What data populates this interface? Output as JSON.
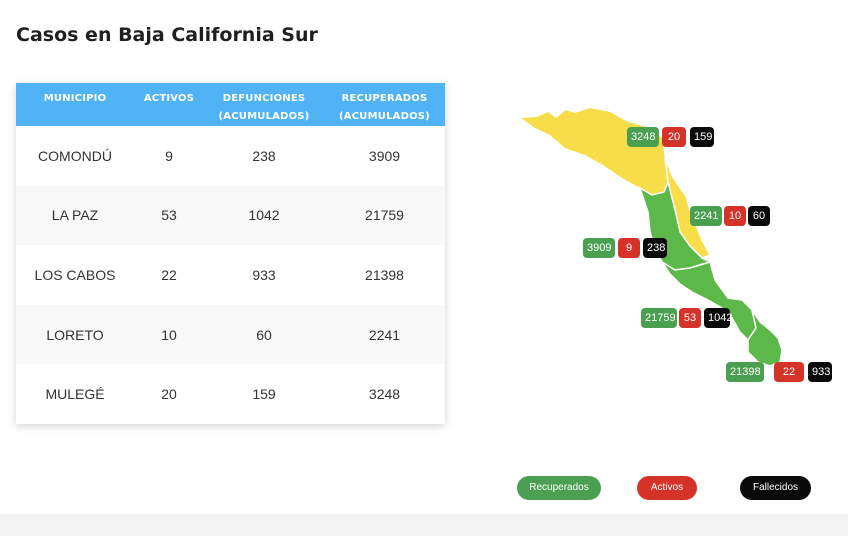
{
  "page": {
    "title": "Casos en Baja California Sur"
  },
  "table": {
    "headers": {
      "municipio": "MUNICIPIO",
      "activos": "ACTIVOS",
      "defunciones_1": "DEFUNCIONES",
      "defunciones_2": "(ACUMULADOS)",
      "recuperados_1": "RECUPERADOS",
      "recuperados_2": "(ACUMULADOS)"
    },
    "rows": [
      {
        "municipio": "COMONDÚ",
        "activos": "9",
        "defunciones": "238",
        "recuperados": "3909"
      },
      {
        "municipio": "LA PAZ",
        "activos": "53",
        "defunciones": "1042",
        "recuperados": "21759"
      },
      {
        "municipio": "LOS CABOS",
        "activos": "22",
        "defunciones": "933",
        "recuperados": "21398"
      },
      {
        "municipio": "LORETO",
        "activos": "10",
        "defunciones": "60",
        "recuperados": "2241"
      },
      {
        "municipio": "MULEGÉ",
        "activos": "20",
        "defunciones": "159",
        "recuperados": "3248"
      }
    ]
  },
  "map": {
    "colors": {
      "yellow": "#f7dd4a",
      "green": "#5cb848",
      "recuperados": "#4aa050",
      "activos": "#d5322a",
      "fallecidos": "#0a0a0a"
    },
    "badges": {
      "mulege": {
        "recuperados": "3248",
        "activos": "20",
        "fallecidos": "159"
      },
      "loreto": {
        "recuperados": "2241",
        "activos": "10",
        "fallecidos": "60"
      },
      "comondu": {
        "recuperados": "3909",
        "activos": "9",
        "fallecidos": "238"
      },
      "lapaz": {
        "recuperados": "21759",
        "activos": "53",
        "fallecidos": "1042"
      },
      "loscabos": {
        "recuperados": "21398",
        "activos": "22",
        "fallecidos": "933"
      }
    }
  },
  "legend": {
    "recuperados": "Recuperados",
    "activos": "Activos",
    "fallecidos": "Fallecidos"
  }
}
